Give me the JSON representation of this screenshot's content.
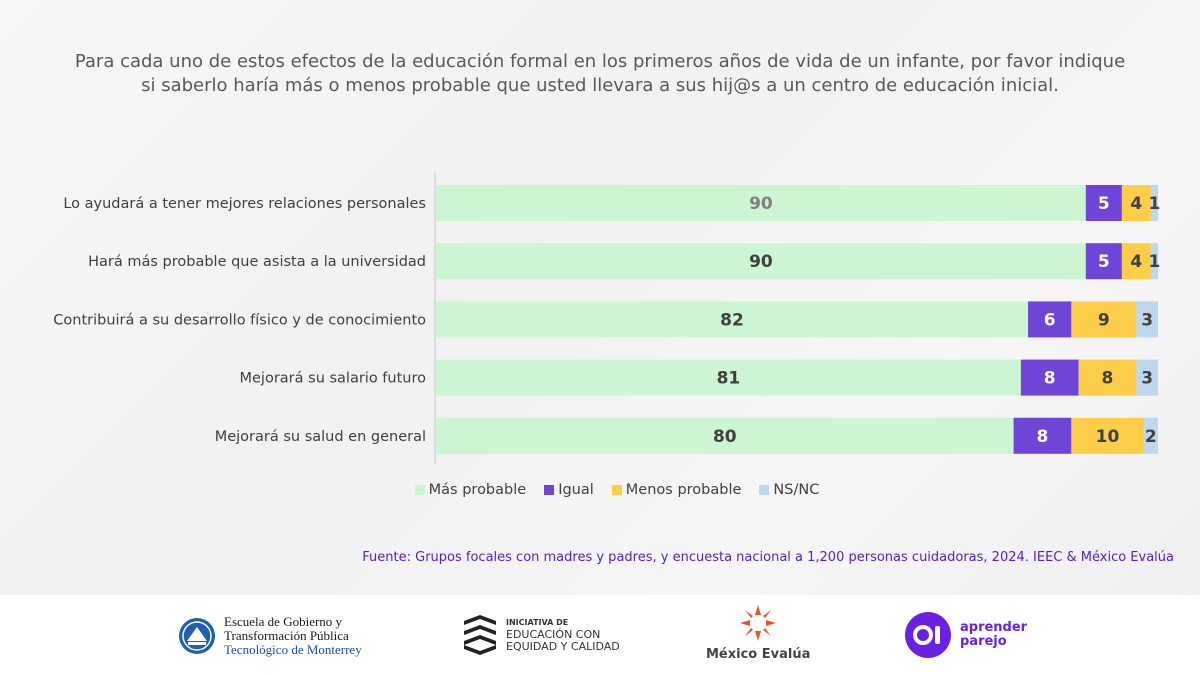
{
  "title_lines": [
    "Para cada uno de estos efectos de la educación formal en los primeros años de vida de un infante, por favor indique",
    "si saberlo haría más o menos probable que usted llevara a sus hij@s a un centro de educación inicial."
  ],
  "chart_data": {
    "type": "bar",
    "orientation": "horizontal",
    "stacked": true,
    "title": "Para cada uno de estos efectos de la educación formal en los primeros años de vida de un infante, por favor indique si saberlo haría más o menos probable que usted llevara a sus hij@s a un centro de educación inicial.",
    "categories": [
      "Lo ayudará a tener mejores relaciones personales",
      "Hará más probable que asista a la universidad",
      "Contribuirá a su desarrollo físico y de conocimiento",
      "Mejorará su salario futuro",
      "Mejorará su salud en general"
    ],
    "series": [
      {
        "name": "Más probable",
        "color": "#ccf5d4",
        "label_color": "#404040",
        "values": [
          90,
          90,
          82,
          81,
          80
        ]
      },
      {
        "name": "Igual",
        "color": "#6f45d8",
        "label_color": "#ffffff",
        "values": [
          5,
          5,
          6,
          8,
          8
        ]
      },
      {
        "name": "Menos probable",
        "color": "#fbcd48",
        "label_color": "#404040",
        "values": [
          4,
          4,
          9,
          8,
          10
        ]
      },
      {
        "name": "NS/NC",
        "color": "#bfd6ef",
        "label_color": "#404040",
        "values": [
          1,
          1,
          3,
          3,
          2
        ]
      }
    ],
    "first_label_color": "#808080",
    "xlim": [
      0,
      100
    ],
    "legend_position": "bottom"
  },
  "source": "Fuente: Grupos focales con madres y padres, y encuesta nacional a 1,200 personas cuidadoras, 2024. IEEC & México Evalúa",
  "logos": {
    "egt": [
      "Escuela de Gobierno y",
      "Transformación Pública",
      "Tecnológico de Monterrey"
    ],
    "ieec": [
      "INICIATIVA DE",
      "EDUCACIÓN CON",
      "EQUIDAD Y CALIDAD"
    ],
    "mexico_evalua": "México Evalúa",
    "aprender_parejo": [
      "aprender",
      "parejo"
    ]
  }
}
